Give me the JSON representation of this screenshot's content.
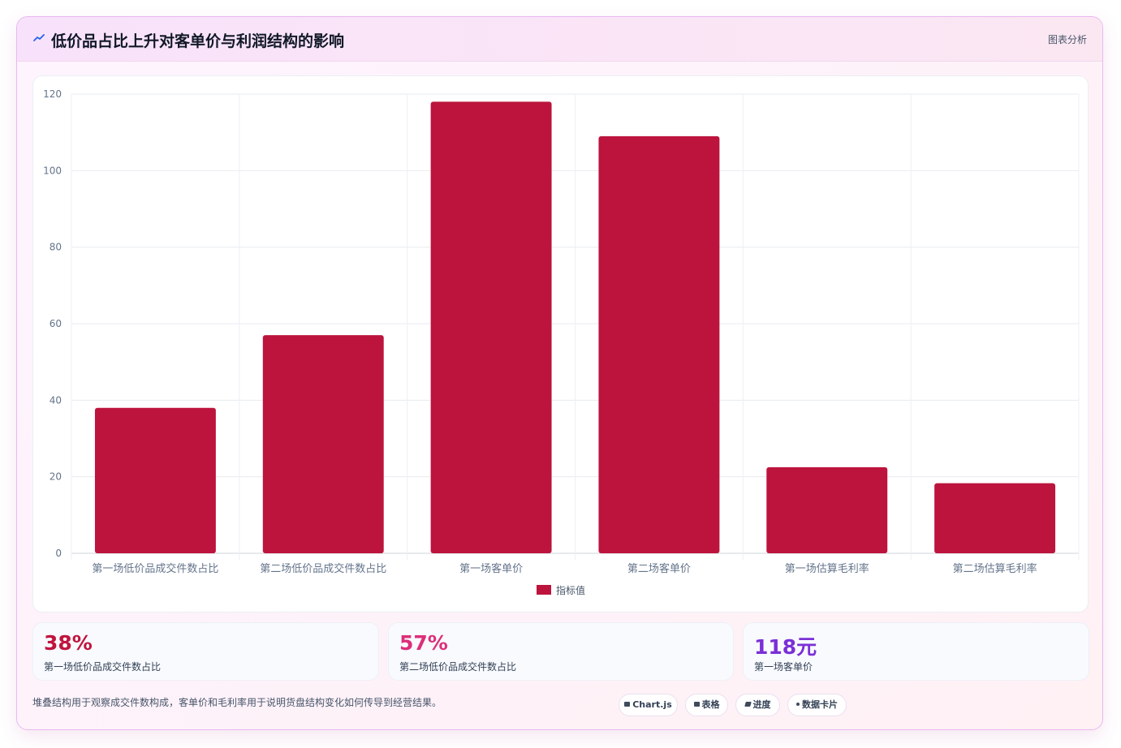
{
  "header": {
    "title": "低价品占比上升对客单价与利润结构的影响",
    "tag": "图表分析",
    "icon": "trend-icon"
  },
  "colors": {
    "bar": "#bc143d",
    "stat_1": "#c0143f",
    "stat_2": "#dc2f7a",
    "stat_3": "#7b2fd6"
  },
  "chart_data": {
    "type": "bar",
    "categories": [
      "第一场低价品成交件数占比",
      "第二场低价品成交件数占比",
      "第一场客单价",
      "第二场客单价",
      "第一场估算毛利率",
      "第二场估算毛利率"
    ],
    "series": [
      {
        "name": "指标值",
        "values": [
          38,
          57,
          118,
          109,
          22.5,
          18.3
        ]
      }
    ],
    "ylim": [
      0,
      120
    ],
    "yticks": [
      0,
      20,
      40,
      60,
      80,
      100,
      120
    ],
    "grid": true,
    "legend": "bottom"
  },
  "stats": [
    {
      "value": "38%",
      "label": "第一场低价品成交件数占比"
    },
    {
      "value": "57%",
      "label": "第二场低价品成交件数占比"
    },
    {
      "value": "118元",
      "label": "第一场客单价"
    }
  ],
  "footnote": "堆叠结构用于观察成交件数构成，客单价和毛利率用于说明货盘结构变化如何传导到经营结果。",
  "chips": [
    {
      "label": "Chart.js",
      "icon": "chart-icon"
    },
    {
      "label": "表格",
      "icon": "table-icon"
    },
    {
      "label": "进度",
      "icon": "progress-icon"
    },
    {
      "label": "数据卡片",
      "icon": "card-icon"
    }
  ]
}
